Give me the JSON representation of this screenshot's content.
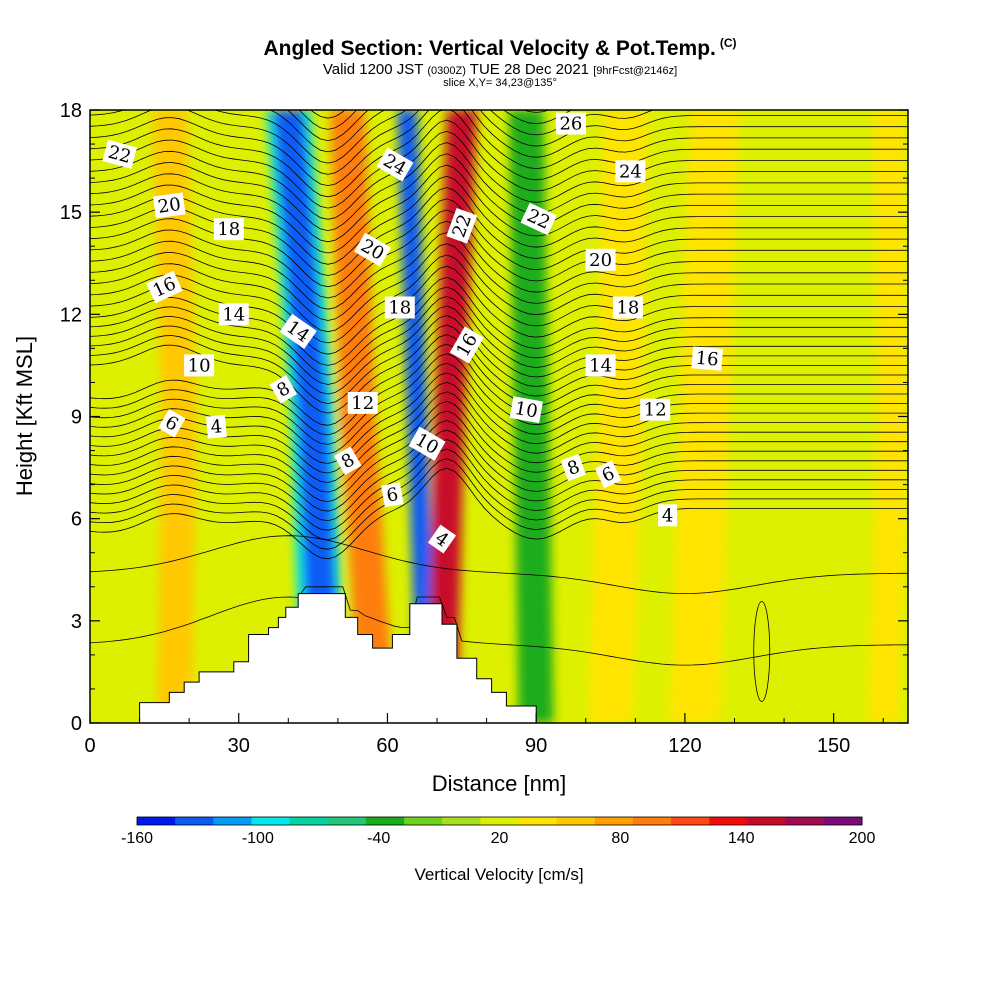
{
  "title": {
    "main": "Angled Section: Vertical Velocity & Pot.Temp.",
    "main_suffix": "(C)",
    "valid_prefix": "Valid 1200 JST",
    "valid_z": "(0300Z)",
    "valid_date": "TUE 28 Dec 2021",
    "valid_fcst": "[9hrFcst@2146z]",
    "slice": "slice X,Y= 34,23@135°"
  },
  "chart_data": {
    "type": "heatmap",
    "xlabel": "Distance [nm]",
    "ylabel": "Height [Kft MSL]",
    "xlim": [
      0,
      165
    ],
    "ylim": [
      0,
      18
    ],
    "x_ticks": [
      0,
      30,
      60,
      90,
      120,
      150
    ],
    "y_ticks": [
      0,
      3,
      6,
      9,
      12,
      15,
      18
    ],
    "colorbar": {
      "label": "Vertical Velocity [cm/s]",
      "tick_labels": [
        "-160",
        "-100",
        "-40",
        "20",
        "80",
        "140",
        "200"
      ],
      "colors": [
        "#0018f0",
        "#0a5cf5",
        "#009cf5",
        "#00e8e8",
        "#00d4a0",
        "#22c87a",
        "#1aac1a",
        "#6cd41a",
        "#a8e01a",
        "#ddf000",
        "#ffe400",
        "#ffc800",
        "#ffa000",
        "#ff7d0a",
        "#ff4614",
        "#f00a0a",
        "#c80a2a",
        "#a00a50",
        "#7a0a7a"
      ]
    },
    "terrain_profile": {
      "x": [
        0,
        10,
        10,
        16,
        16,
        19,
        19,
        22,
        22,
        29,
        29,
        32,
        32,
        36,
        36,
        38,
        38,
        39.5,
        39.5,
        42,
        42,
        51.5,
        51.5,
        54,
        54,
        57,
        57,
        61,
        61,
        64.5,
        64.5,
        71,
        71,
        74,
        74,
        78,
        78,
        81,
        81,
        84,
        84,
        90,
        90
      ],
      "y": [
        0,
        0,
        0.6,
        0.6,
        0.9,
        0.9,
        1.2,
        1.2,
        1.5,
        1.5,
        1.8,
        1.8,
        2.6,
        2.6,
        2.8,
        2.8,
        3.1,
        3.1,
        3.4,
        3.4,
        3.8,
        3.8,
        3.1,
        3.1,
        2.6,
        2.6,
        2.2,
        2.2,
        2.6,
        2.6,
        3.5,
        3.5,
        2.9,
        2.9,
        1.9,
        1.9,
        1.3,
        1.3,
        0.9,
        0.9,
        0.5,
        0.5,
        0
      ]
    },
    "velocity_features": [
      {
        "x_low": 47,
        "x_high": 45,
        "x_top": 40,
        "width": 9,
        "value": -120
      },
      {
        "x_low": 58,
        "x_high": 54,
        "x_top": 52,
        "width": 7,
        "value": 90
      },
      {
        "x_low": 68,
        "x_high": 66,
        "x_top": 64,
        "width": 4,
        "value": -160
      },
      {
        "x_low": 71,
        "x_high": 72.5,
        "x_top": 75,
        "width": 6,
        "value": 150
      },
      {
        "x_low": 17,
        "x_high": 18,
        "x_top": 16,
        "width": 7,
        "value": 45
      },
      {
        "x_low": 105,
        "x_high": 107,
        "x_top": 108,
        "width": 9,
        "value": 20
      },
      {
        "x_low": 90,
        "x_high": 89,
        "x_top": 88,
        "width": 7,
        "value": -55
      },
      {
        "x_low": 122,
        "x_high": 124,
        "x_top": 126,
        "width": 10,
        "value": 20
      },
      {
        "x_low": 160,
        "x_high": 162,
        "x_top": 161,
        "width": 6,
        "value": 20
      }
    ],
    "contour_labels": [
      {
        "text": "22",
        "x": 6,
        "y": 16.7,
        "angle": 15
      },
      {
        "text": "20",
        "x": 16,
        "y": 15.2,
        "angle": -8
      },
      {
        "text": "18",
        "x": 28,
        "y": 14.5,
        "angle": 0
      },
      {
        "text": "16",
        "x": 15,
        "y": 12.8,
        "angle": -25
      },
      {
        "text": "14",
        "x": 29,
        "y": 12.0,
        "angle": 0
      },
      {
        "text": "14",
        "x": 42,
        "y": 11.5,
        "angle": 35
      },
      {
        "text": "10",
        "x": 22,
        "y": 10.5,
        "angle": 0
      },
      {
        "text": "8",
        "x": 39,
        "y": 9.8,
        "angle": -30
      },
      {
        "text": "6",
        "x": 16.5,
        "y": 8.8,
        "angle": 30
      },
      {
        "text": "4",
        "x": 25.5,
        "y": 8.7,
        "angle": -5
      },
      {
        "text": "24",
        "x": 61.5,
        "y": 16.4,
        "angle": 30
      },
      {
        "text": "20",
        "x": 57,
        "y": 13.9,
        "angle": 30
      },
      {
        "text": "18",
        "x": 62.5,
        "y": 12.2,
        "angle": 0
      },
      {
        "text": "12",
        "x": 55,
        "y": 9.4,
        "angle": 0
      },
      {
        "text": "8",
        "x": 52,
        "y": 7.7,
        "angle": -30
      },
      {
        "text": "10",
        "x": 68,
        "y": 8.2,
        "angle": 30
      },
      {
        "text": "6",
        "x": 61,
        "y": 6.7,
        "angle": -10
      },
      {
        "text": "4",
        "x": 71,
        "y": 5.4,
        "angle": 35
      },
      {
        "text": "22",
        "x": 75,
        "y": 14.6,
        "angle": -70
      },
      {
        "text": "16",
        "x": 76,
        "y": 11.1,
        "angle": -60
      },
      {
        "text": "26",
        "x": 97,
        "y": 17.6,
        "angle": 0
      },
      {
        "text": "24",
        "x": 109,
        "y": 16.2,
        "angle": 0
      },
      {
        "text": "22",
        "x": 90.5,
        "y": 14.8,
        "angle": 25
      },
      {
        "text": "20",
        "x": 103,
        "y": 13.6,
        "angle": 0
      },
      {
        "text": "18",
        "x": 108.5,
        "y": 12.2,
        "angle": 0
      },
      {
        "text": "14",
        "x": 103,
        "y": 10.5,
        "angle": 0
      },
      {
        "text": "16",
        "x": 124.5,
        "y": 10.7,
        "angle": 5
      },
      {
        "text": "10",
        "x": 88,
        "y": 9.2,
        "angle": 10
      },
      {
        "text": "12",
        "x": 114,
        "y": 9.2,
        "angle": 0
      },
      {
        "text": "8",
        "x": 97.5,
        "y": 7.5,
        "angle": -20
      },
      {
        "text": "6",
        "x": 104.5,
        "y": 7.3,
        "angle": -25
      },
      {
        "text": "4",
        "x": 116.5,
        "y": 6.1,
        "angle": 0
      }
    ]
  }
}
